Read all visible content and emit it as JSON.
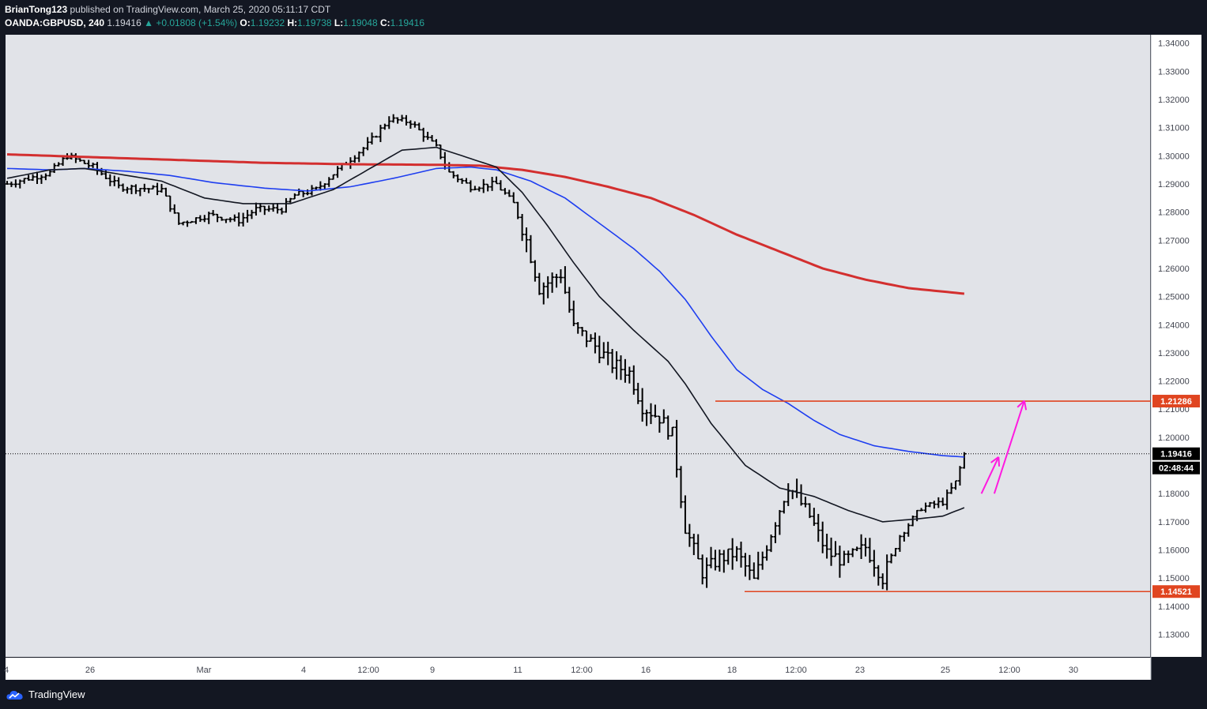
{
  "header": {
    "publisher": "BrianTong123",
    "published_text": "published on TradingView.com, March 25, 2020 05:11:17 CDT",
    "symbol": "OANDA:GBPUSD, 240",
    "last": "1.19416",
    "change": "▲ +0.01808 (+1.54%)",
    "ohlc": [
      {
        "k": "O:",
        "v": "1.19232"
      },
      {
        "k": "H:",
        "v": "1.19738"
      },
      {
        "k": "L:",
        "v": "1.19048"
      },
      {
        "k": "C:",
        "v": "1.19416"
      }
    ]
  },
  "footer": {
    "brand": "TradingView"
  },
  "colors": {
    "page_bg": "#131722",
    "plot_bg": "#e1e3e8",
    "axis_bg": "#ffffff",
    "bars": "#000000",
    "ma_fast": "#131722",
    "ma_mid": "#1e3ef0",
    "ma_slow": "#d32f2f",
    "levels": "#e04520",
    "arrows": "#ff1ae0",
    "price_label": "#000000"
  },
  "icons": {
    "brand": "tradingview-cloud-icon"
  },
  "chart_data": {
    "type": "ohlc",
    "title": "OANDA:GBPUSD, 240",
    "ylim": [
      1.122,
      1.343
    ],
    "y_ticks": [
      "1.34000",
      "1.33000",
      "1.32000",
      "1.31000",
      "1.30000",
      "1.29000",
      "1.28000",
      "1.27000",
      "1.26000",
      "1.25000",
      "1.24000",
      "1.23000",
      "1.22000",
      "1.21000",
      "1.20000",
      "1.19000",
      "1.18000",
      "1.17000",
      "1.16000",
      "1.15000",
      "1.14000",
      "1.13000"
    ],
    "x_ticks": [
      "4",
      "26",
      "Mar",
      "4",
      "12:00",
      "9",
      "11",
      "12:00",
      "16",
      "18",
      "12:00",
      "23",
      "25",
      "12:00",
      "30"
    ],
    "bar_count": 240,
    "current_price": {
      "label": "1.19416",
      "value": 1.19416,
      "countdown": "02:48:44"
    },
    "levels": [
      {
        "label": "1.21286",
        "value": 1.21286
      },
      {
        "label": "1.14521",
        "value": 1.14521
      }
    ],
    "anchors": [
      {
        "i": 0,
        "p": 1.29
      },
      {
        "i": 10,
        "p": 1.294
      },
      {
        "i": 14,
        "p": 1.3
      },
      {
        "i": 20,
        "p": 1.296
      },
      {
        "i": 26,
        "p": 1.289
      },
      {
        "i": 36,
        "p": 1.288
      },
      {
        "i": 40,
        "p": 1.276
      },
      {
        "i": 47,
        "p": 1.279
      },
      {
        "i": 54,
        "p": 1.277
      },
      {
        "i": 58,
        "p": 1.281
      },
      {
        "i": 64,
        "p": 1.281
      },
      {
        "i": 67,
        "p": 1.286
      },
      {
        "i": 72,
        "p": 1.288
      },
      {
        "i": 77,
        "p": 1.295
      },
      {
        "i": 84,
        "p": 1.304
      },
      {
        "i": 89,
        "p": 1.313
      },
      {
        "i": 94,
        "p": 1.312
      },
      {
        "i": 100,
        "p": 1.303
      },
      {
        "i": 103,
        "p": 1.294
      },
      {
        "i": 108,
        "p": 1.289
      },
      {
        "i": 114,
        "p": 1.29
      },
      {
        "i": 118,
        "p": 1.283
      },
      {
        "i": 121,
        "p": 1.27
      },
      {
        "i": 124,
        "p": 1.253
      },
      {
        "i": 129,
        "p": 1.258
      },
      {
        "i": 132,
        "p": 1.239
      },
      {
        "i": 136,
        "p": 1.234
      },
      {
        "i": 141,
        "p": 1.226
      },
      {
        "i": 145,
        "p": 1.223
      },
      {
        "i": 148,
        "p": 1.211
      },
      {
        "i": 152,
        "p": 1.207
      },
      {
        "i": 155,
        "p": 1.201
      },
      {
        "i": 158,
        "p": 1.168
      },
      {
        "i": 162,
        "p": 1.152
      },
      {
        "i": 166,
        "p": 1.157
      },
      {
        "i": 170,
        "p": 1.159
      },
      {
        "i": 174,
        "p": 1.149
      },
      {
        "i": 178,
        "p": 1.166
      },
      {
        "i": 182,
        "p": 1.183
      },
      {
        "i": 187,
        "p": 1.172
      },
      {
        "i": 191,
        "p": 1.159
      },
      {
        "i": 195,
        "p": 1.156
      },
      {
        "i": 200,
        "p": 1.161
      },
      {
        "i": 204,
        "p": 1.15
      },
      {
        "i": 208,
        "p": 1.165
      },
      {
        "i": 213,
        "p": 1.175
      },
      {
        "i": 218,
        "p": 1.177
      },
      {
        "i": 221,
        "p": 1.184
      },
      {
        "i": 223,
        "p": 1.194
      }
    ],
    "ma_fast_anchors": [
      {
        "i": 0,
        "p": 1.292
      },
      {
        "i": 10,
        "p": 1.295
      },
      {
        "i": 18,
        "p": 1.2955
      },
      {
        "i": 26,
        "p": 1.2935
      },
      {
        "i": 36,
        "p": 1.291
      },
      {
        "i": 46,
        "p": 1.285
      },
      {
        "i": 55,
        "p": 1.283
      },
      {
        "i": 66,
        "p": 1.283
      },
      {
        "i": 76,
        "p": 1.288
      },
      {
        "i": 84,
        "p": 1.295
      },
      {
        "i": 92,
        "p": 1.302
      },
      {
        "i": 100,
        "p": 1.303
      },
      {
        "i": 108,
        "p": 1.299
      },
      {
        "i": 114,
        "p": 1.296
      },
      {
        "i": 120,
        "p": 1.287
      },
      {
        "i": 126,
        "p": 1.275
      },
      {
        "i": 132,
        "p": 1.262
      },
      {
        "i": 138,
        "p": 1.25
      },
      {
        "i": 146,
        "p": 1.238
      },
      {
        "i": 154,
        "p": 1.227
      },
      {
        "i": 158,
        "p": 1.219
      },
      {
        "i": 164,
        "p": 1.205
      },
      {
        "i": 172,
        "p": 1.19
      },
      {
        "i": 180,
        "p": 1.182
      },
      {
        "i": 188,
        "p": 1.179
      },
      {
        "i": 196,
        "p": 1.174
      },
      {
        "i": 204,
        "p": 1.17
      },
      {
        "i": 212,
        "p": 1.171
      },
      {
        "i": 218,
        "p": 1.172
      },
      {
        "i": 223,
        "p": 1.175
      }
    ],
    "ma_mid_anchors": [
      {
        "i": 0,
        "p": 1.2955
      },
      {
        "i": 10,
        "p": 1.295
      },
      {
        "i": 18,
        "p": 1.2955
      },
      {
        "i": 28,
        "p": 1.2945
      },
      {
        "i": 38,
        "p": 1.293
      },
      {
        "i": 48,
        "p": 1.2905
      },
      {
        "i": 60,
        "p": 1.2885
      },
      {
        "i": 70,
        "p": 1.2875
      },
      {
        "i": 80,
        "p": 1.289
      },
      {
        "i": 90,
        "p": 1.292
      },
      {
        "i": 100,
        "p": 1.2955
      },
      {
        "i": 108,
        "p": 1.296
      },
      {
        "i": 114,
        "p": 1.295
      },
      {
        "i": 122,
        "p": 1.291
      },
      {
        "i": 130,
        "p": 1.285
      },
      {
        "i": 138,
        "p": 1.276
      },
      {
        "i": 146,
        "p": 1.267
      },
      {
        "i": 152,
        "p": 1.259
      },
      {
        "i": 158,
        "p": 1.249
      },
      {
        "i": 164,
        "p": 1.236
      },
      {
        "i": 170,
        "p": 1.224
      },
      {
        "i": 176,
        "p": 1.217
      },
      {
        "i": 182,
        "p": 1.212
      },
      {
        "i": 188,
        "p": 1.206
      },
      {
        "i": 194,
        "p": 1.201
      },
      {
        "i": 202,
        "p": 1.197
      },
      {
        "i": 210,
        "p": 1.195
      },
      {
        "i": 218,
        "p": 1.1935
      },
      {
        "i": 223,
        "p": 1.193
      }
    ],
    "ma_slow_anchors": [
      {
        "i": 0,
        "p": 1.3005
      },
      {
        "i": 20,
        "p": 1.2995
      },
      {
        "i": 40,
        "p": 1.2985
      },
      {
        "i": 60,
        "p": 1.2975
      },
      {
        "i": 80,
        "p": 1.297
      },
      {
        "i": 100,
        "p": 1.2968
      },
      {
        "i": 110,
        "p": 1.2965
      },
      {
        "i": 120,
        "p": 1.295
      },
      {
        "i": 130,
        "p": 1.2925
      },
      {
        "i": 140,
        "p": 1.289
      },
      {
        "i": 150,
        "p": 1.285
      },
      {
        "i": 160,
        "p": 1.279
      },
      {
        "i": 170,
        "p": 1.272
      },
      {
        "i": 180,
        "p": 1.266
      },
      {
        "i": 190,
        "p": 1.26
      },
      {
        "i": 200,
        "p": 1.256
      },
      {
        "i": 210,
        "p": 1.253
      },
      {
        "i": 223,
        "p": 1.251
      }
    ],
    "arrows": [
      {
        "from_bar": 227,
        "from_p": 1.18,
        "to_bar": 231,
        "to_p": 1.193
      },
      {
        "from_bar": 230,
        "from_p": 1.18,
        "to_bar": 237,
        "to_p": 1.213
      }
    ]
  }
}
